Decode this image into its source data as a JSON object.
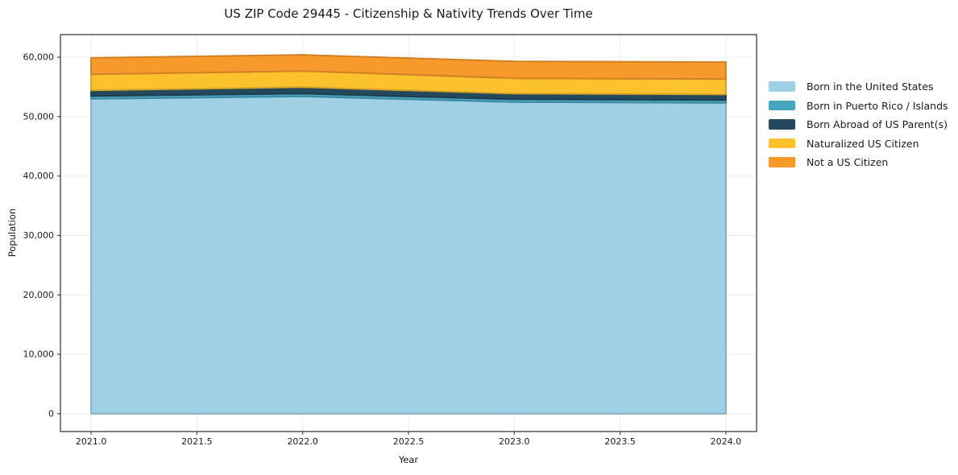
{
  "title": "US ZIP Code 29445 - Citizenship & Nativity Trends Over Time",
  "chart_data": {
    "type": "area",
    "stacked": true,
    "title": "US ZIP Code 29445 - Citizenship & Nativity Trends Over Time",
    "xlabel": "Year",
    "ylabel": "Population",
    "x": [
      2021,
      2022,
      2023,
      2024
    ],
    "series": [
      {
        "name": "Born in the United States",
        "color": "#9fd0e6",
        "values": [
          52990,
          53400,
          52450,
          52310
        ]
      },
      {
        "name": "Born in Puerto Rico / Islands",
        "color": "#47a6c2",
        "values": [
          480,
          470,
          470,
          480
        ]
      },
      {
        "name": "Born Abroad of US Parent(s)",
        "color": "#24495c",
        "values": [
          950,
          1090,
          950,
          950
        ]
      },
      {
        "name": "Naturalized US Citizen",
        "color": "#fcc22d",
        "values": [
          2710,
          2710,
          2580,
          2580
        ]
      },
      {
        "name": "Not a US Citizen",
        "color": "#f8992b",
        "values": [
          2770,
          2720,
          2850,
          2850
        ]
      }
    ],
    "totals": [
      59900,
      60390,
      59300,
      59170
    ],
    "xlim": [
      2020.855,
      2024.145
    ],
    "ylim": [
      -3000,
      63800
    ],
    "x_ticks": [
      2021.0,
      2021.5,
      2022.0,
      2022.5,
      2023.0,
      2023.5,
      2024.0
    ],
    "x_tick_labels": [
      "2021.0",
      "2021.5",
      "2022.0",
      "2022.5",
      "2023.0",
      "2023.5",
      "2024.0"
    ],
    "y_ticks": [
      0,
      10000,
      20000,
      30000,
      40000,
      50000,
      60000
    ],
    "y_tick_labels": [
      "0",
      "10,000",
      "20,000",
      "30,000",
      "40,000",
      "50,000",
      "60,000"
    ],
    "grid": true,
    "grid_color": "#ebebeb",
    "spine_color": "#2b2b2b",
    "tick_label_color": "#1a1a1a",
    "background": "#ffffff",
    "legend_position": "right-outside"
  }
}
